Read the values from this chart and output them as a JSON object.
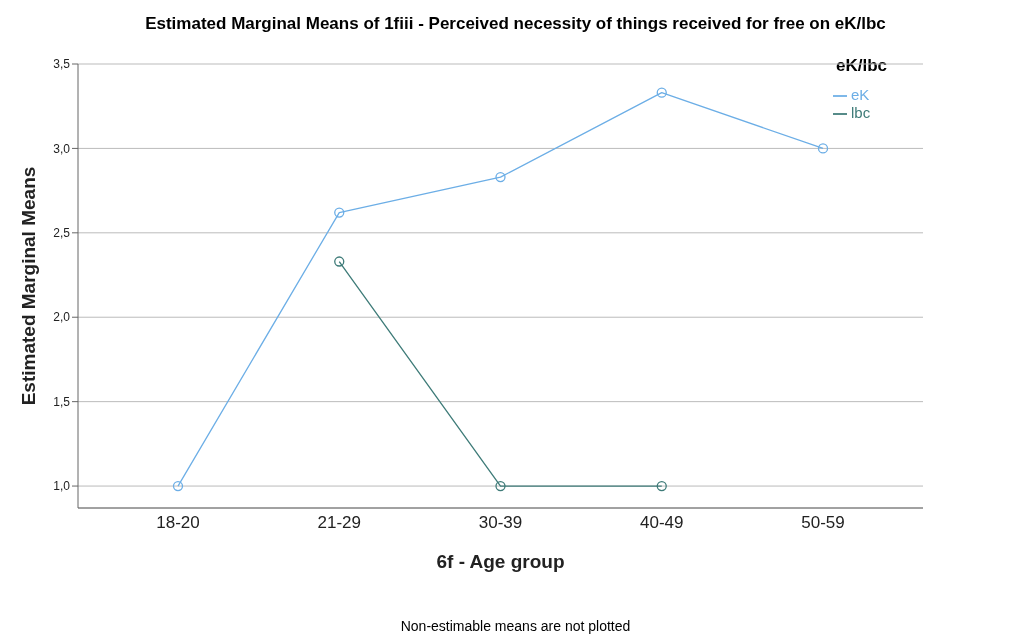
{
  "chart_data": {
    "type": "line",
    "title": "Estimated Marginal Means of 1fiii - Perceived necessity of things received for free on eK/lbc",
    "xlabel": "6f - Age group",
    "ylabel": "Estimated Marginal Means",
    "legend_title": "eK/lbc",
    "annotations": [
      "Non-estimable means are not plotted"
    ],
    "categories": [
      "18-20",
      "21-29",
      "30-39",
      "40-49",
      "50-59"
    ],
    "series": [
      {
        "name": "eK",
        "color": "#6caee6",
        "values": [
          1.0,
          2.62,
          2.83,
          3.33,
          3.0
        ]
      },
      {
        "name": "lbc",
        "color": "#3e7b78",
        "values": [
          null,
          2.33,
          1.0,
          1.0,
          null
        ]
      }
    ],
    "ylim": [
      0.87,
      3.5
    ],
    "yticks": [
      {
        "value": 1,
        "label": "1,0"
      },
      {
        "value": 1.5,
        "label": "1,5"
      },
      {
        "value": 2,
        "label": "2,0"
      },
      {
        "value": 2.5,
        "label": "2,5"
      },
      {
        "value": 3,
        "label": "3,0"
      },
      {
        "value": 3.5,
        "label": "3,5"
      }
    ],
    "grid": "y",
    "legend": "top right",
    "marker": "circle",
    "line_style": "solid"
  }
}
